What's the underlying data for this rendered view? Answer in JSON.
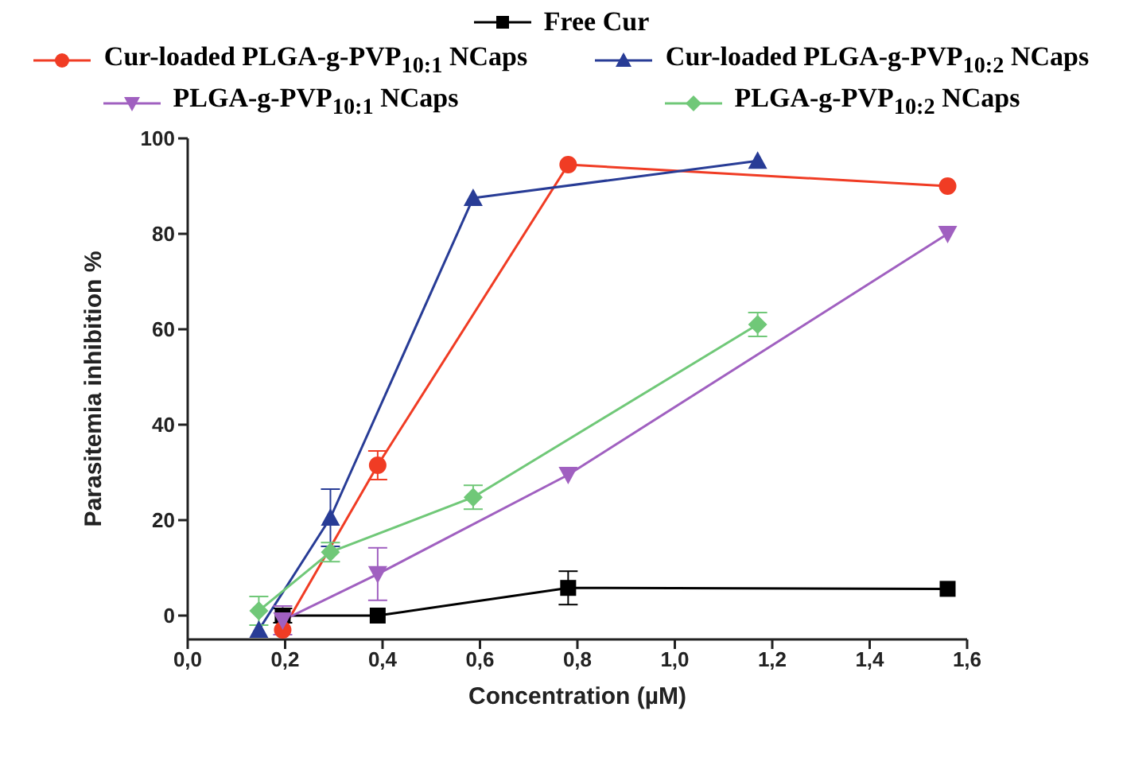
{
  "chart_data": {
    "type": "line",
    "xlabel": "Concentration (µM)",
    "ylabel": "Parasitemia inhibition %",
    "xlim": [
      0,
      1.6
    ],
    "xticks": [
      {
        "value": 0,
        "label": "0,0"
      },
      {
        "value": 0.2,
        "label": "0,2"
      },
      {
        "value": 0.4,
        "label": "0,4"
      },
      {
        "value": 0.6,
        "label": "0,6"
      },
      {
        "value": 0.8,
        "label": "0,8"
      },
      {
        "value": 1.0,
        "label": "1,0"
      },
      {
        "value": 1.2,
        "label": "1,2"
      },
      {
        "value": 1.4,
        "label": "1,4"
      },
      {
        "value": 1.6,
        "label": "1,6"
      }
    ],
    "ylim": [
      -5,
      100
    ],
    "yticks": [
      0,
      20,
      40,
      60,
      80,
      100
    ],
    "legend": "top",
    "series": [
      {
        "name": "Free Cur",
        "color": "#000000",
        "marker": "square",
        "x": [
          0.195,
          0.39,
          0.781,
          1.56
        ],
        "values": [
          0,
          0,
          5.8,
          5.6
        ],
        "errors": [
          1.5,
          null,
          3.5,
          null
        ]
      },
      {
        "name": "Cur-loaded PLGA-g-PVP$_{10:1}$ NCaps",
        "color": "#f03c24",
        "marker": "circle",
        "x": [
          0.195,
          0.39,
          0.781,
          1.56
        ],
        "values": [
          -3,
          31.5,
          94.5,
          90
        ],
        "errors": [
          null,
          3,
          null,
          null
        ]
      },
      {
        "name": "Cur-loaded PLGA-g-PVP$_{10:2}$ NCaps",
        "color": "#283c96",
        "marker": "triangle",
        "x": [
          0.146,
          0.293,
          0.586,
          1.17
        ],
        "values": [
          -3,
          20.5,
          87.5,
          95.3
        ],
        "errors": [
          null,
          6,
          null,
          null
        ]
      },
      {
        "name": "PLGA-g-PVP$_{10:1}$ NCaps",
        "color": "#a060c0",
        "marker": "triangle-down",
        "x": [
          0.195,
          0.39,
          0.781,
          1.56
        ],
        "values": [
          -1,
          8.7,
          29.5,
          80
        ],
        "errors": [
          3,
          5.5,
          null,
          null
        ]
      },
      {
        "name": "PLGA-g-PVP$_{10:2}$ NCaps",
        "color": "#70c878",
        "marker": "diamond",
        "x": [
          0.146,
          0.293,
          0.586,
          1.17
        ],
        "values": [
          1,
          13.3,
          24.8,
          61
        ],
        "errors": [
          3,
          2,
          2.5,
          2.5
        ]
      }
    ]
  }
}
